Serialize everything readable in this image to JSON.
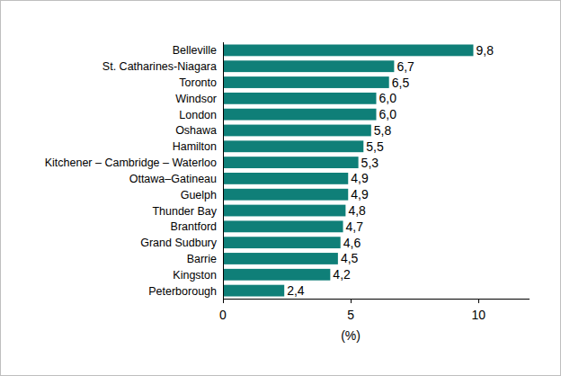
{
  "chart_data": {
    "type": "bar",
    "orientation": "horizontal",
    "categories": [
      "Belleville",
      "St. Catharines-Niagara",
      "Toronto",
      "Windsor",
      "London",
      "Oshawa",
      "Hamilton",
      "Kitchener – Cambridge – Waterloo",
      "Ottawa–Gatineau",
      "Guelph",
      "Thunder Bay",
      "Brantford",
      "Grand Sudbury",
      "Barrie",
      "Kingston",
      "Peterborough"
    ],
    "values": [
      9.8,
      6.7,
      6.5,
      6.0,
      6.0,
      5.8,
      5.5,
      5.3,
      4.9,
      4.9,
      4.8,
      4.7,
      4.6,
      4.5,
      4.2,
      2.4
    ],
    "value_labels": [
      "9,8",
      "6,7",
      "6,5",
      "6,0",
      "6,0",
      "5,8",
      "5,5",
      "5,3",
      "4,9",
      "4,9",
      "4,8",
      "4,7",
      "4,6",
      "4,5",
      "4,2",
      "2,4"
    ],
    "data_labels": true,
    "color": "#0f7f78",
    "x_label": "(%)",
    "xlim": [
      0,
      12
    ],
    "xticks": [
      0,
      5,
      10
    ],
    "grid": false
  }
}
